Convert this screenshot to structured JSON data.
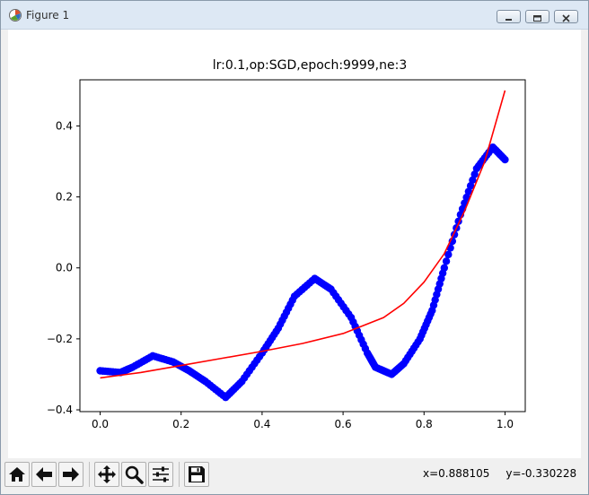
{
  "window": {
    "title": "Figure 1",
    "controls": [
      "minimize",
      "maximize",
      "close"
    ]
  },
  "toolbar": {
    "buttons": [
      {
        "name": "home",
        "icon": "home-icon"
      },
      {
        "name": "back",
        "icon": "arrow-left-icon"
      },
      {
        "name": "forward",
        "icon": "arrow-right-icon"
      },
      {
        "name": "pan",
        "icon": "move-icon"
      },
      {
        "name": "zoom",
        "icon": "magnifier-icon"
      },
      {
        "name": "configure-subplots",
        "icon": "sliders-icon"
      },
      {
        "name": "save",
        "icon": "floppy-disk-icon"
      }
    ],
    "coord_x": "x=0.888105",
    "coord_y": "y=-0.330228"
  },
  "chart_data": {
    "type": "scatter",
    "title": "lr:0.1,op:SGD,epoch:9999,ne:3",
    "xlabel": "",
    "ylabel": "",
    "xlim": [
      -0.05,
      1.05
    ],
    "ylim": [
      -0.405,
      0.53
    ],
    "xticks": [
      0.0,
      0.2,
      0.4,
      0.6,
      0.8,
      1.0
    ],
    "xtick_labels": [
      "0.0",
      "0.2",
      "0.4",
      "0.6",
      "0.8",
      "1.0"
    ],
    "yticks": [
      -0.4,
      -0.2,
      0.0,
      0.2,
      0.4
    ],
    "ytick_labels": [
      "−0.4",
      "−0.2",
      "0.0",
      "0.2",
      "0.4"
    ],
    "grid": false,
    "series": [
      {
        "kind": "scatter",
        "color": "#0000ff",
        "x": [
          0.0,
          0.05,
          0.08,
          0.13,
          0.18,
          0.22,
          0.26,
          0.31,
          0.35,
          0.4,
          0.44,
          0.48,
          0.53,
          0.57,
          0.62,
          0.66,
          0.68,
          0.72,
          0.75,
          0.79,
          0.82,
          0.85,
          0.89,
          0.93,
          0.97,
          1.0
        ],
        "y": [
          -0.29,
          -0.295,
          -0.28,
          -0.248,
          -0.265,
          -0.29,
          -0.32,
          -0.365,
          -0.32,
          -0.24,
          -0.17,
          -0.08,
          -0.03,
          -0.06,
          -0.14,
          -0.24,
          -0.28,
          -0.3,
          -0.27,
          -0.2,
          -0.12,
          0.0,
          0.15,
          0.28,
          0.34,
          0.305
        ]
      },
      {
        "kind": "line",
        "color": "#ff0000",
        "x": [
          0.0,
          0.1,
          0.2,
          0.3,
          0.4,
          0.5,
          0.6,
          0.7,
          0.75,
          0.8,
          0.85,
          0.9,
          0.95,
          1.0
        ],
        "y": [
          -0.31,
          -0.295,
          -0.275,
          -0.255,
          -0.235,
          -0.213,
          -0.185,
          -0.14,
          -0.1,
          -0.04,
          0.04,
          0.16,
          0.3,
          0.5
        ]
      }
    ]
  }
}
